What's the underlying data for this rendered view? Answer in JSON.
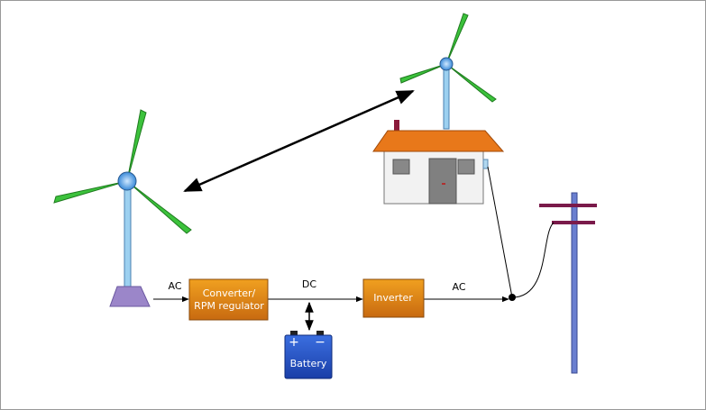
{
  "converter": {
    "lines": [
      "Converter/",
      "RPM regulator"
    ]
  },
  "inverter": {
    "label": "Inverter"
  },
  "battery": {
    "plus": "+",
    "minus": "−",
    "label": "Battery"
  },
  "edges": {
    "turbine_to_converter": "AC",
    "converter_to_inverter": "DC",
    "inverter_to_grid": "AC"
  }
}
